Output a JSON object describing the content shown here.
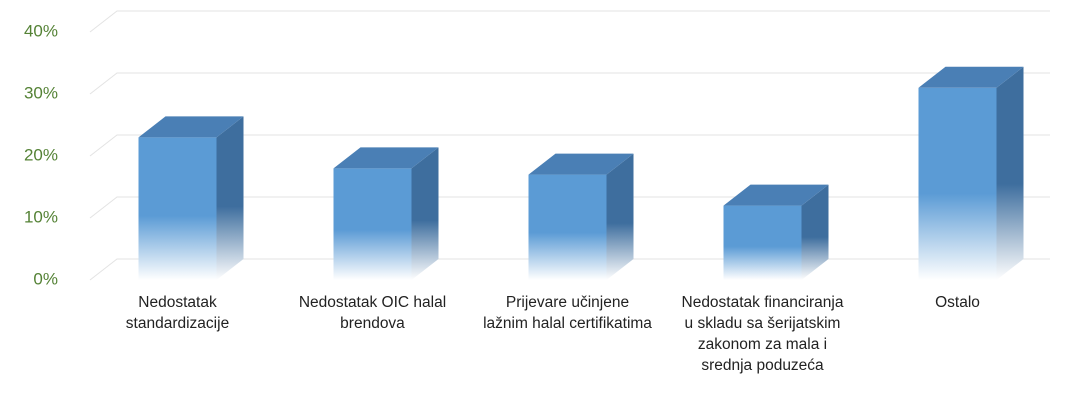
{
  "chart_data": {
    "type": "bar3d",
    "categories": [
      "Nedostatak standardizacije",
      "Nedostatak OIC halal brendova",
      "Prijevare učinjene lažnim halal certifikatima",
      "Nedostatak financiranja u skladu sa šerijatskim zakonom za mala i srednja poduzeća",
      "Ostalo"
    ],
    "values": [
      23,
      18,
      17,
      12,
      31
    ],
    "color": "#5b9bd5",
    "ylim": [
      0,
      40
    ],
    "yticks": [
      {
        "value": 0,
        "label": "0%"
      },
      {
        "value": 10,
        "label": "10%"
      },
      {
        "value": 20,
        "label": "20%"
      },
      {
        "value": 30,
        "label": "30%"
      },
      {
        "value": 40,
        "label": "40%"
      }
    ],
    "grid": true
  }
}
